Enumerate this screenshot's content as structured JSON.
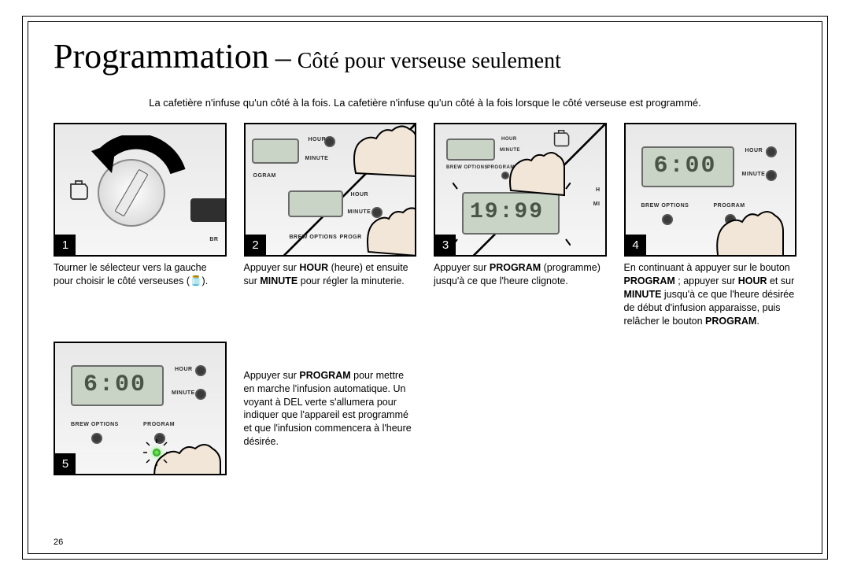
{
  "title": {
    "main": "Programmation",
    "dash": "–",
    "sub": "Côté pour verseuse seulement"
  },
  "note": "La cafetière n'infuse qu'un côté à la fois. La cafetière n'infuse qu'un côté à la fois lorsque le côté verseuse est programmé.",
  "steps": [
    {
      "num": "1",
      "caption_html": "Tourner le sélecteur vers la gauche pour choisir le côté verseuses (🫙)."
    },
    {
      "num": "2",
      "caption_html": "Appuyer sur <b>HOUR</b> (heure) et ensuite sur <b>MINUTE</b> pour régler la minuterie."
    },
    {
      "num": "3",
      "caption_html": "Appuyer sur <b>PROGRAM</b> (programme) jusqu'à ce que l'heure clignote."
    },
    {
      "num": "4",
      "caption_html": "En continuant à appuyer sur le bouton <b>PROGRAM</b> ; appuyer sur <b>HOUR</b> et sur <b>MINUTE</b> jusqu'à ce que l'heure désirée de début d'infusion apparaisse, puis relâcher le bouton <b>PROGRAM</b>."
    },
    {
      "num": "5",
      "caption_html": "Appuyer sur <b>PROGRAM</b> pour mettre en marche l'infusion automatique. Un voyant à DEL verte s'allumera pour indiquer que l'appareil est programmé et que l'infusion commencera à l'heure désirée."
    }
  ],
  "panel_labels": {
    "hour": "HOUR",
    "minute": "MINUTE",
    "brew_options": "BREW OPTIONS",
    "program": "PROGRAM",
    "br": "BR"
  },
  "lcd": {
    "time_600": "6:00",
    "time_1999": "19:99"
  },
  "page_number": "26",
  "colors": {
    "border": "#000000",
    "panel_bg_light": "#f2f2f2",
    "panel_bg_dark": "#d8d8d8",
    "lcd_bg": "#c9d3c6",
    "lcd_text": "#4a5446",
    "skin": "#f1e6d8",
    "led_green": "#5bff4a"
  }
}
